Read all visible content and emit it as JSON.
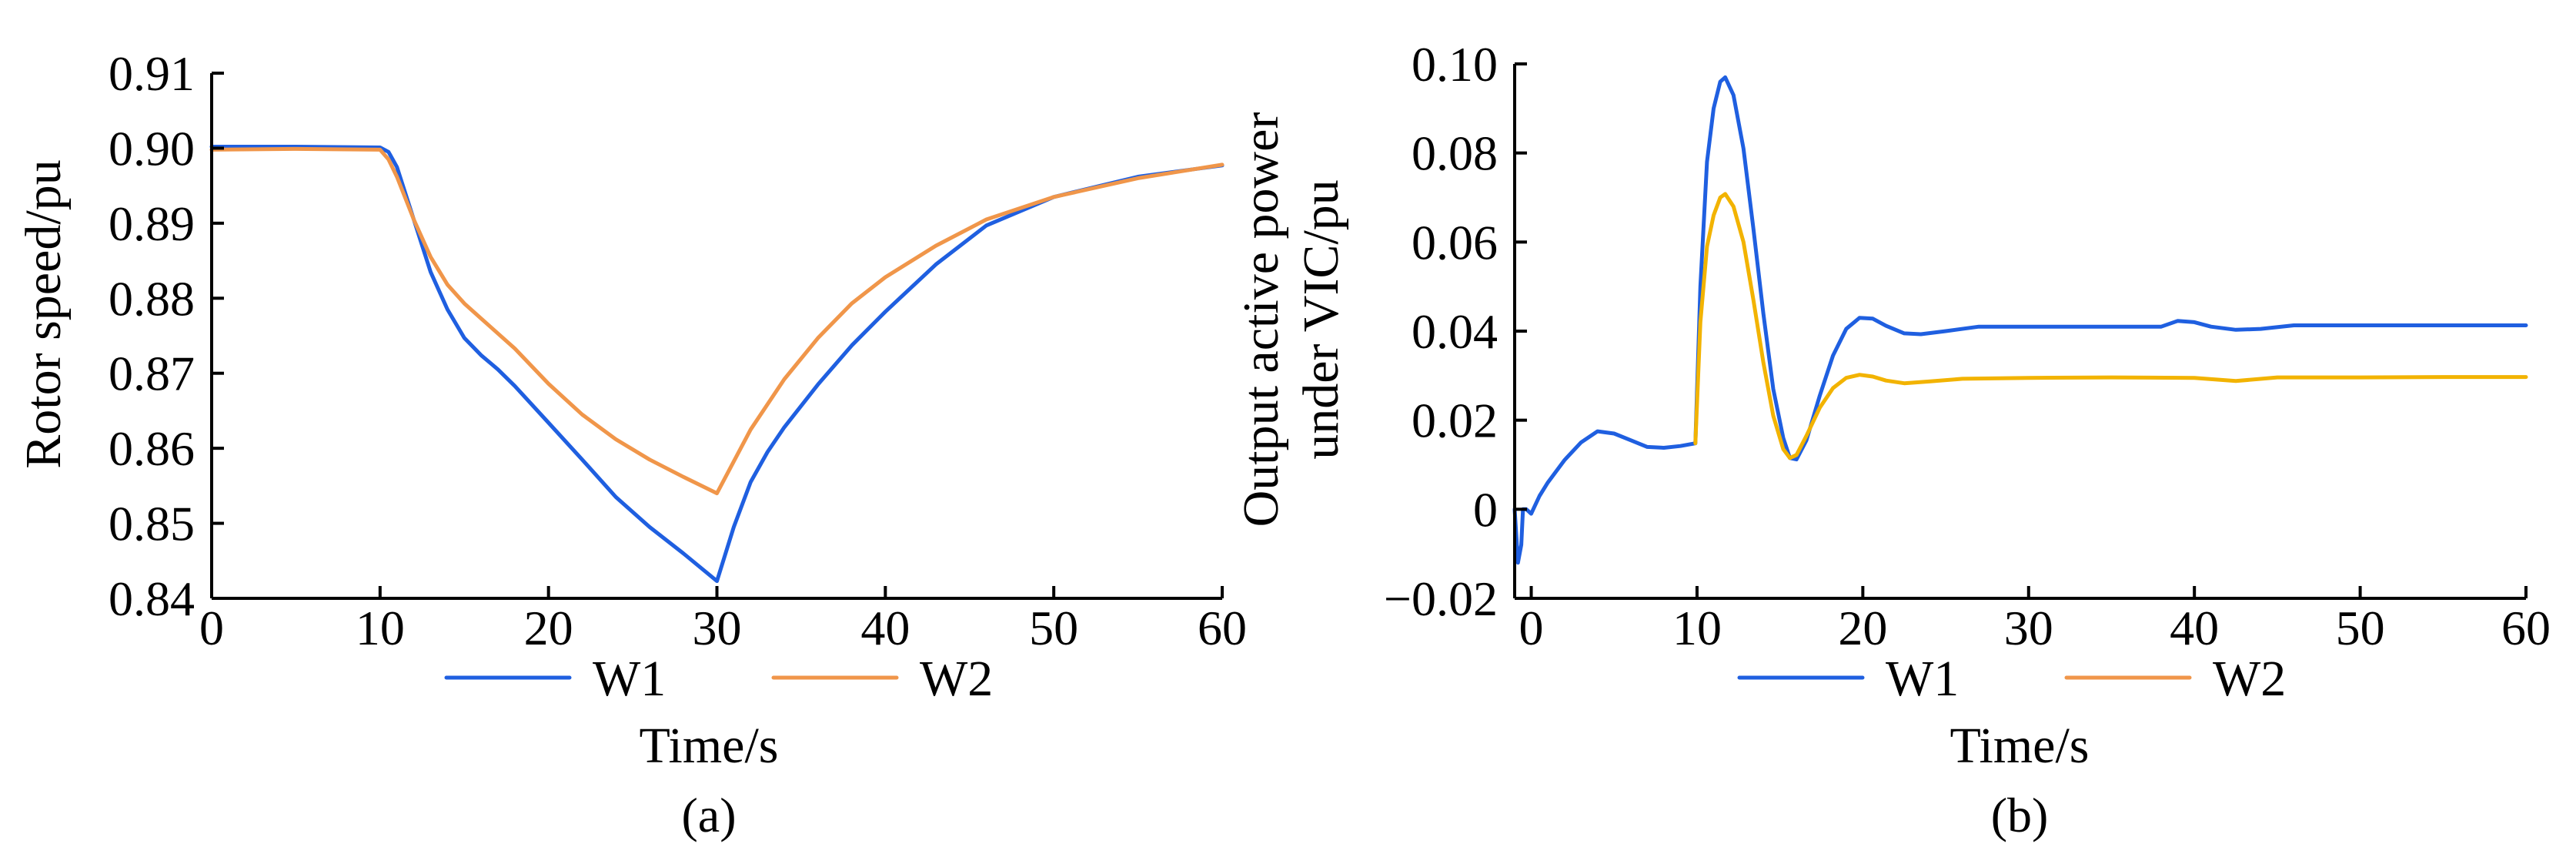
{
  "chart_data": [
    {
      "panel_label": "(a)",
      "type": "line",
      "xlabel": "Time/s",
      "ylabel": "Rotor speed/pu",
      "xlim": [
        0,
        60
      ],
      "ylim": [
        0.84,
        0.91
      ],
      "xticks": [
        0,
        10,
        20,
        30,
        40,
        50,
        60
      ],
      "yticks": [
        0.84,
        0.85,
        0.86,
        0.87,
        0.88,
        0.89,
        0.9,
        0.91
      ],
      "xtick_labels": [
        "0",
        "10",
        "20",
        "30",
        "40",
        "50",
        "60"
      ],
      "ytick_labels": [
        "0.84",
        "0.85",
        "0.86",
        "0.87",
        "0.88",
        "0.89",
        "0.90",
        "0.91"
      ],
      "grid": false,
      "legend_position": "bottom",
      "series": [
        {
          "name": "W1",
          "color": "#1f5fe0",
          "x": [
            0,
            5,
            10,
            10.5,
            11,
            12,
            13,
            14,
            15,
            16,
            17,
            18,
            20,
            22,
            24,
            26,
            28,
            30,
            31,
            32,
            33,
            34,
            36,
            38,
            40,
            43,
            46,
            50,
            55,
            60
          ],
          "y": [
            0.9002,
            0.9002,
            0.9001,
            0.8995,
            0.8975,
            0.8905,
            0.8835,
            0.8785,
            0.8747,
            0.8724,
            0.8705,
            0.8683,
            0.8634,
            0.8585,
            0.8535,
            0.8495,
            0.846,
            0.8423,
            0.8495,
            0.8555,
            0.8595,
            0.8628,
            0.8685,
            0.8737,
            0.8782,
            0.8845,
            0.8897,
            0.8935,
            0.8962,
            0.8977
          ]
        },
        {
          "name": "W2",
          "color": "#f0964a",
          "x": [
            0,
            5,
            10,
            10.5,
            11,
            12,
            13,
            14,
            15,
            16,
            18,
            20,
            22,
            24,
            26,
            28,
            30,
            32,
            34,
            36,
            38,
            40,
            43,
            46,
            50,
            55,
            60
          ],
          "y": [
            0.8998,
            0.8999,
            0.8998,
            0.8985,
            0.8962,
            0.8905,
            0.8855,
            0.8818,
            0.8793,
            0.8773,
            0.8733,
            0.8686,
            0.8645,
            0.8612,
            0.8585,
            0.8562,
            0.854,
            0.8625,
            0.8692,
            0.8747,
            0.8793,
            0.8828,
            0.887,
            0.8905,
            0.8935,
            0.896,
            0.8978
          ]
        }
      ]
    },
    {
      "panel_label": "(b)",
      "type": "line",
      "xlabel": "Time/s",
      "ylabel_lines": [
        "Output active power",
        "under VIC/pu"
      ],
      "xlim": [
        -1,
        60
      ],
      "ylim": [
        -0.02,
        0.1
      ],
      "xticks": [
        0,
        10,
        20,
        30,
        40,
        50,
        60
      ],
      "yticks": [
        -0.02,
        0,
        0.02,
        0.04,
        0.06,
        0.08,
        0.1
      ],
      "xtick_labels": [
        "0",
        "10",
        "20",
        "30",
        "40",
        "50",
        "60"
      ],
      "ytick_labels": [
        "−0.02",
        "0",
        "0.02",
        "0.04",
        "0.06",
        "0.08",
        "0.10"
      ],
      "grid": false,
      "legend_position": "bottom",
      "series": [
        {
          "name": "W1",
          "color": "#1f5fe0",
          "x": [
            -1,
            -0.8,
            -0.6,
            -0.5,
            -0.3,
            0,
            0.5,
            1,
            2,
            3,
            4,
            5,
            6,
            7,
            8,
            9,
            9.9,
            10.2,
            10.6,
            11,
            11.4,
            11.7,
            12.2,
            12.8,
            13.4,
            14,
            14.6,
            15.2,
            15.6,
            16,
            16.6,
            17.4,
            18.2,
            19,
            19.8,
            20.6,
            21.4,
            22.5,
            23.5,
            25,
            27,
            30,
            35,
            38,
            39,
            40,
            41,
            42.5,
            44,
            46,
            50,
            55,
            60
          ],
          "y": [
            0,
            -0.012,
            -0.008,
            0,
            0,
            -0.001,
            0.003,
            0.006,
            0.011,
            0.015,
            0.0175,
            0.017,
            0.0155,
            0.014,
            0.0138,
            0.0142,
            0.0148,
            0.05,
            0.078,
            0.09,
            0.096,
            0.097,
            0.093,
            0.081,
            0.063,
            0.044,
            0.027,
            0.016,
            0.0115,
            0.0112,
            0.0155,
            0.0255,
            0.0345,
            0.0405,
            0.043,
            0.0428,
            0.0412,
            0.0395,
            0.0393,
            0.04,
            0.041,
            0.041,
            0.041,
            0.041,
            0.0423,
            0.042,
            0.041,
            0.0403,
            0.0405,
            0.0413,
            0.0413,
            0.0413,
            0.0413
          ]
        },
        {
          "name": "W2",
          "color": "#f2b300",
          "x": [
            9.9,
            10.2,
            10.6,
            11,
            11.4,
            11.7,
            12.2,
            12.8,
            13.4,
            14,
            14.6,
            15.2,
            15.6,
            16,
            16.6,
            17.4,
            18.2,
            19,
            19.8,
            20.6,
            21.4,
            22.5,
            24,
            26,
            30,
            35,
            40,
            42.5,
            45,
            50,
            55,
            60
          ],
          "y": [
            0.0148,
            0.042,
            0.059,
            0.066,
            0.07,
            0.0708,
            0.068,
            0.06,
            0.047,
            0.033,
            0.021,
            0.0135,
            0.0115,
            0.0122,
            0.0165,
            0.0228,
            0.0272,
            0.0295,
            0.0302,
            0.0298,
            0.0289,
            0.0283,
            0.0287,
            0.0293,
            0.0295,
            0.0296,
            0.0295,
            0.0288,
            0.0296,
            0.0296,
            0.0297,
            0.0297
          ]
        }
      ]
    }
  ]
}
